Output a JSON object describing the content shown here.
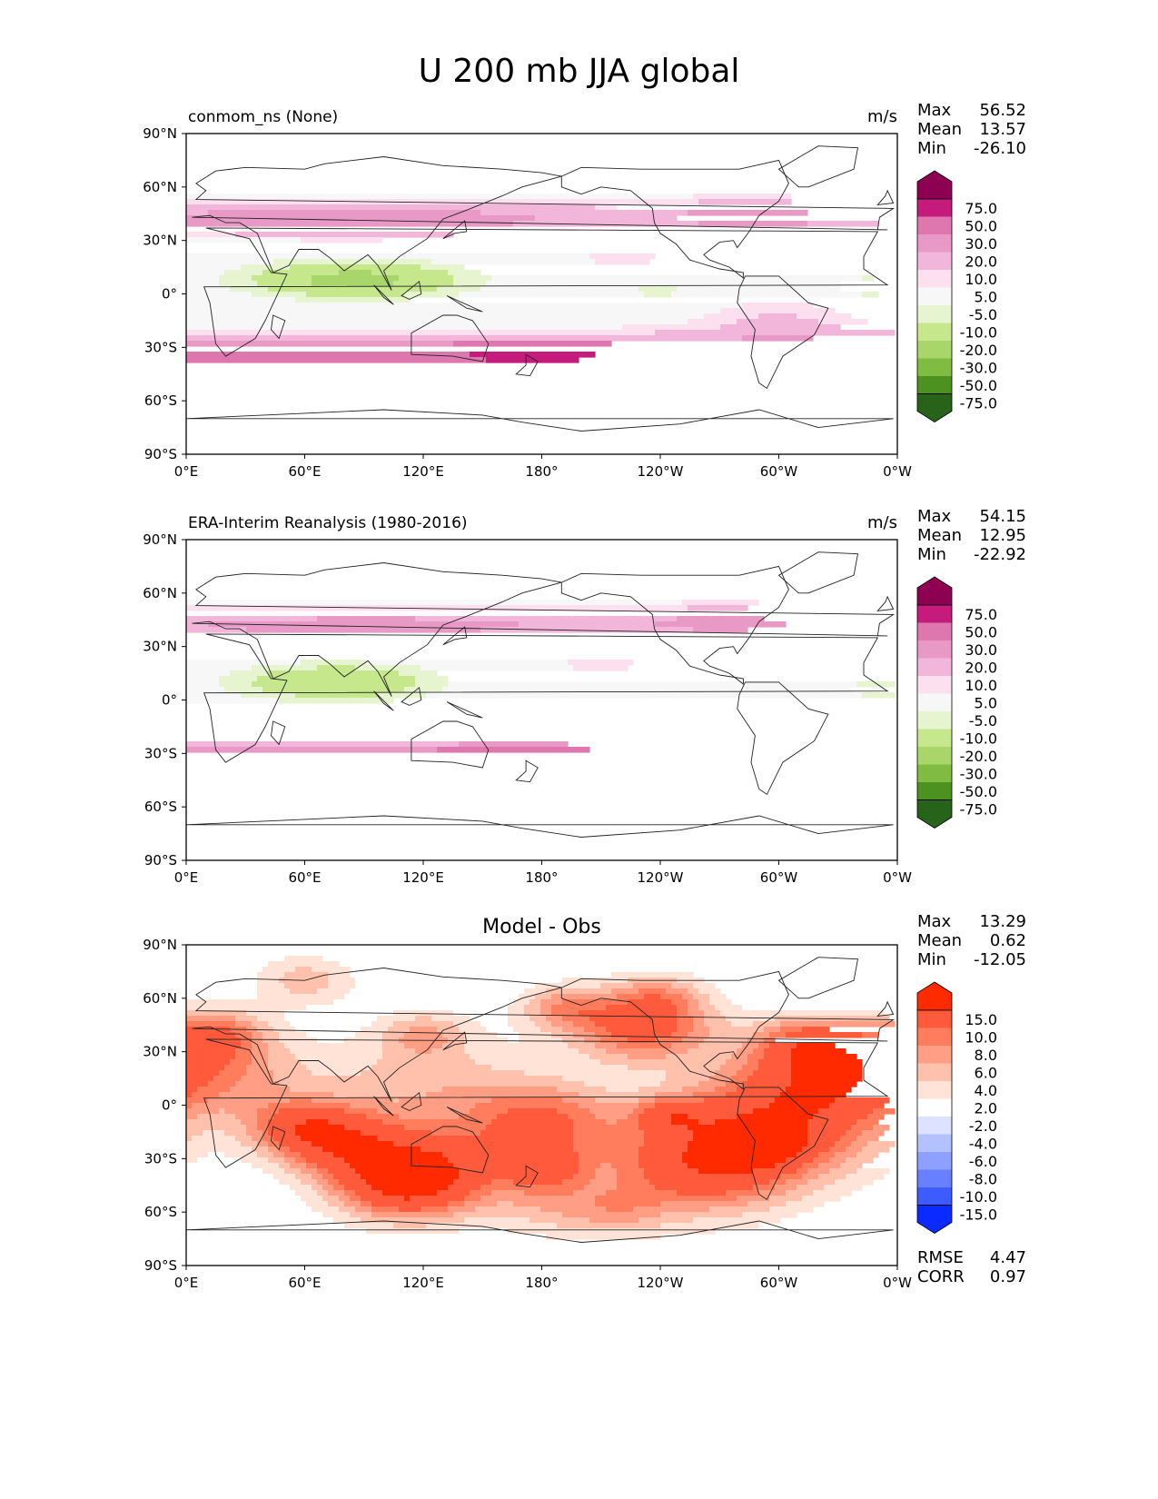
{
  "title": "U 200 mb JJA global",
  "chart_data": [
    {
      "type": "heatmap",
      "title": "conmom_ns (None)",
      "units": "m/s",
      "stats": [
        {
          "label": "Max",
          "value": "56.52"
        },
        {
          "label": "Mean",
          "value": "13.57"
        },
        {
          "label": "Min",
          "value": "-26.10"
        }
      ],
      "colorbar": {
        "labels": [
          "75.0",
          "50.0",
          "30.0",
          "20.0",
          "10.0",
          "5.0",
          "-5.0",
          "-10.0",
          "-20.0",
          "-30.0",
          "-50.0",
          "-75.0"
        ],
        "colors": [
          "#8e0152",
          "#c51b7d",
          "#de77ae",
          "#e899c5",
          "#f1b6da",
          "#fde0ef",
          "#f7f7f7",
          "#e6f5d0",
          "#c6e78c",
          "#a8d66a",
          "#7fbc41",
          "#4d9221",
          "#276419"
        ]
      },
      "x_ticks": [
        "0°E",
        "60°E",
        "120°E",
        "180°",
        "120°W",
        "60°W",
        "0°W"
      ],
      "y_ticks": [
        "90°N",
        "60°N",
        "30°N",
        "0°",
        "30°S",
        "60°S",
        "90°S"
      ],
      "field": "model"
    },
    {
      "type": "heatmap",
      "title": "ERA-Interim Reanalysis (1980-2016)",
      "units": "m/s",
      "stats": [
        {
          "label": "Max",
          "value": "54.15"
        },
        {
          "label": "Mean",
          "value": "12.95"
        },
        {
          "label": "Min",
          "value": "-22.92"
        }
      ],
      "colorbar": {
        "labels": [
          "75.0",
          "50.0",
          "30.0",
          "20.0",
          "10.0",
          "5.0",
          "-5.0",
          "-10.0",
          "-20.0",
          "-30.0",
          "-50.0",
          "-75.0"
        ],
        "colors": [
          "#8e0152",
          "#c51b7d",
          "#de77ae",
          "#e899c5",
          "#f1b6da",
          "#fde0ef",
          "#f7f7f7",
          "#e6f5d0",
          "#c6e78c",
          "#a8d66a",
          "#7fbc41",
          "#4d9221",
          "#276419"
        ]
      },
      "x_ticks": [
        "0°E",
        "60°E",
        "120°E",
        "180°",
        "120°W",
        "60°W",
        "0°W"
      ],
      "y_ticks": [
        "90°N",
        "60°N",
        "30°N",
        "0°",
        "30°S",
        "60°S",
        "90°S"
      ],
      "field": "obs"
    },
    {
      "type": "heatmap",
      "title": "Model - Obs",
      "units": "",
      "stats": [
        {
          "label": "Max",
          "value": "13.29"
        },
        {
          "label": "Mean",
          "value": "0.62"
        },
        {
          "label": "Min",
          "value": "-12.05"
        }
      ],
      "metrics": [
        {
          "label": "RMSE",
          "value": "4.47"
        },
        {
          "label": "CORR",
          "value": "0.97"
        }
      ],
      "colorbar": {
        "labels": [
          "15.0",
          "10.0",
          "8.0",
          "6.0",
          "4.0",
          "2.0",
          "-2.0",
          "-4.0",
          "-6.0",
          "-8.0",
          "-10.0",
          "-15.0"
        ],
        "colors": [
          "#ff2a00",
          "#ff5a3c",
          "#ff7c5c",
          "#ff9e84",
          "#ffc1ac",
          "#ffe3d6",
          "#ffffff",
          "#dce2ff",
          "#b4c1ff",
          "#8ea0ff",
          "#6680ff",
          "#3d5cff",
          "#0a2aff"
        ]
      },
      "x_ticks": [
        "0°E",
        "60°E",
        "120°E",
        "180°",
        "120°W",
        "60°W",
        "0°W"
      ],
      "y_ticks": [
        "90°N",
        "60°N",
        "30°N",
        "0°",
        "30°S",
        "60°S",
        "90°S"
      ],
      "field": "diff"
    }
  ]
}
